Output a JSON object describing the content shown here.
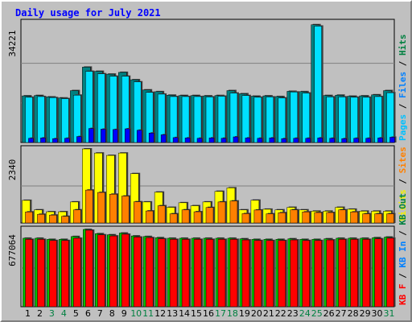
{
  "chart_data": {
    "type": "bar",
    "title": "Daily usage for July 2021",
    "categories": [
      "1",
      "2",
      "3",
      "4",
      "5",
      "6",
      "7",
      "8",
      "9",
      "10",
      "11",
      "12",
      "13",
      "14",
      "15",
      "16",
      "17",
      "18",
      "19",
      "20",
      "21",
      "22",
      "23",
      "24",
      "25",
      "26",
      "27",
      "28",
      "29",
      "30",
      "31"
    ],
    "weekend_days": [
      "3",
      "4",
      "10",
      "11",
      "17",
      "18",
      "24",
      "25",
      "31"
    ],
    "panels": [
      {
        "name": "hits-files-pages",
        "ymax_label": "34221",
        "ymax": 34221,
        "legend": [
          {
            "text": "Pages",
            "color": "#00c0ff"
          },
          {
            "text": " / ",
            "color": "#000000"
          },
          {
            "text": "Files",
            "color": "#0080ff"
          },
          {
            "text": " / ",
            "color": "#000000"
          },
          {
            "text": "Hits",
            "color": "#008040"
          }
        ],
        "series": [
          {
            "name": "Hits",
            "color": "#008080",
            "values": [
              13300,
              13400,
              13000,
              12700,
              14800,
              21500,
              20300,
              19500,
              20000,
              17900,
              15000,
              14500,
              13500,
              13400,
              13400,
              13300,
              13400,
              14800,
              13900,
              13200,
              13300,
              13100,
              14600,
              14500,
              33600,
              13400,
              13500,
              13200,
              13300,
              13600,
              14800
            ]
          },
          {
            "name": "Files",
            "color": "#00e0ff",
            "values": [
              12900,
              13100,
              12800,
              12500,
              13500,
              20300,
              19600,
              18900,
              18900,
              17300,
              14300,
              13800,
              13100,
              13100,
              13100,
              13000,
              13200,
              14100,
              13400,
              12900,
              13000,
              12700,
              14400,
              14100,
              33200,
              13000,
              13000,
              12900,
              12900,
              13100,
              14200
            ]
          },
          {
            "name": "Pages",
            "color": "#0000ff",
            "values": [
              1200,
              1300,
              1100,
              1200,
              1700,
              4000,
              3800,
              3700,
              3900,
              3500,
              2700,
              2200,
              1400,
              1300,
              1200,
              1300,
              1200,
              1600,
              1300,
              1200,
              1300,
              1100,
              1200,
              1200,
              1300,
              1200,
              1100,
              1200,
              1200,
              1300,
              1500
            ]
          }
        ]
      },
      {
        "name": "visits-sites",
        "ymax_label": "2340",
        "ymax": 2340,
        "legend": [
          {
            "text": "Visits",
            "color": "#f0f000"
          },
          {
            "text": " / ",
            "color": "#000000"
          },
          {
            "text": "Sites",
            "color": "#ff8000"
          }
        ],
        "series": [
          {
            "name": "Visits",
            "color": "#ffff00",
            "values": [
              715,
              415,
              355,
              355,
              665,
              2340,
              2210,
              2135,
              2210,
              1560,
              665,
              975,
              495,
              640,
              545,
              665,
              1000,
              1110,
              415,
              720,
              435,
              415,
              495,
              415,
              375,
              375,
              495,
              435,
              375,
              375,
              375
            ]
          },
          {
            "name": "Sites",
            "color": "#ff8000",
            "values": [
              350,
              275,
              250,
              210,
              415,
              1040,
              965,
              910,
              850,
              670,
              380,
              545,
              290,
              415,
              355,
              490,
              665,
              695,
              295,
              410,
              290,
              325,
              415,
              350,
              330,
              330,
              415,
              350,
              290,
              290,
              290
            ]
          }
        ]
      },
      {
        "name": "kbytes",
        "ymax_label": "677064",
        "ymax": 677064,
        "legend": [
          {
            "text": "KB F",
            "color": "#ff0000"
          },
          {
            "text": " / ",
            "color": "#000000"
          },
          {
            "text": "KB In",
            "color": "#0080ff"
          },
          {
            "text": " / ",
            "color": "#000000"
          },
          {
            "text": "KB Out",
            "color": "#008040"
          }
        ],
        "series": [
          {
            "name": "KB F",
            "color": "#00c000",
            "values": [
              600000,
              600000,
              590000,
              590000,
              615000,
              677064,
              640000,
              630000,
              645000,
              620000,
              615000,
              605000,
              600000,
              600000,
              600000,
              600000,
              600000,
              600000,
              595000,
              590000,
              590000,
              590000,
              595000,
              590000,
              590000,
              595000,
              600000,
              600000,
              600000,
              605000,
              610000
            ]
          },
          {
            "name": "KB In",
            "color": "#ff0000",
            "values": [
              590000,
              590000,
              580000,
              580000,
              600000,
              670000,
              630000,
              620000,
              635000,
              610000,
              605000,
              595000,
              590000,
              590000,
              590000,
              590000,
              590000,
              590000,
              585000,
              580000,
              580000,
              580000,
              585000,
              580000,
              580000,
              585000,
              590000,
              590000,
              590000,
              595000,
              600000
            ]
          }
        ]
      }
    ]
  }
}
